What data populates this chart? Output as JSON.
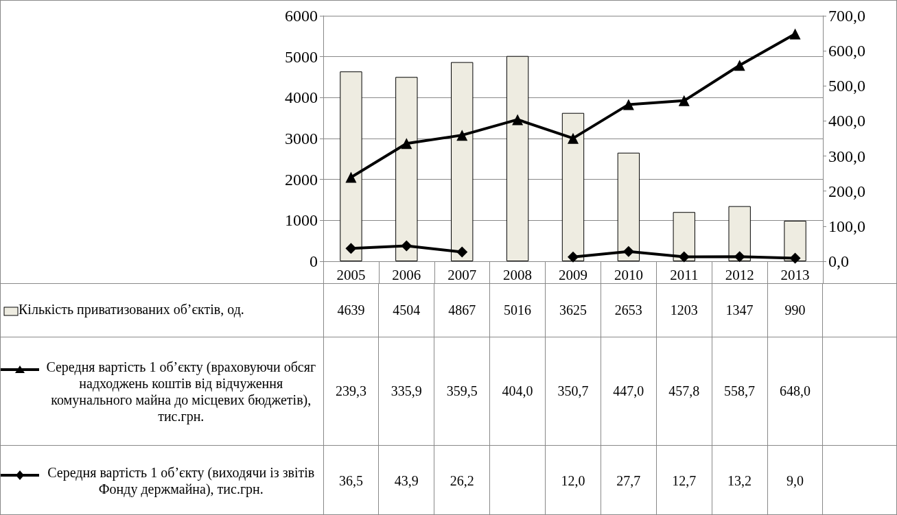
{
  "chart_data": {
    "type": "bar",
    "categories": [
      "2005",
      "2006",
      "2007",
      "2008",
      "2009",
      "2010",
      "2011",
      "2012",
      "2013"
    ],
    "series": [
      {
        "name": "Кількість приватизованих об’єктів, од.",
        "color": "#eeece1",
        "values": [
          4639,
          4504,
          4867,
          5016,
          3625,
          2653,
          1203,
          1347,
          990
        ],
        "value_labels": [
          "4639",
          "4504",
          "4867",
          "5016",
          "3625",
          "2653",
          "1203",
          "1347",
          "990"
        ]
      },
      {
        "name": "Середня вартість 1 об’єкту (враховуючи обсяг надходжень коштів від відчуження комунального майна до місцевих бюджетів), тис.грн.",
        "type": "line",
        "axis": "y2",
        "marker": "triangle",
        "color": "#000000",
        "values": [
          239.3,
          335.9,
          359.5,
          404.0,
          350.7,
          447.0,
          457.8,
          558.7,
          648.0
        ],
        "value_labels": [
          "239,3",
          "335,9",
          "359,5",
          "404,0",
          "350,7",
          "447,0",
          "457,8",
          "558,7",
          "648,0"
        ]
      },
      {
        "name": "Середня вартість 1 об’єкту (виходячи із звітів Фонду держмайна), тис.грн.",
        "type": "line",
        "axis": "y2",
        "marker": "diamond",
        "color": "#000000",
        "values": [
          36.5,
          43.9,
          26.2,
          null,
          12.0,
          27.7,
          12.7,
          13.2,
          9.0
        ],
        "value_labels": [
          "36,5",
          "43,9",
          "26,2",
          null,
          "12,0",
          "27,7",
          "12,7",
          "13,2",
          "9,0"
        ]
      }
    ],
    "ylim": [
      0,
      6000
    ],
    "yticks": [
      0,
      1000,
      2000,
      3000,
      4000,
      5000,
      6000
    ],
    "y2lim": [
      0,
      700
    ],
    "y2ticks": [
      {
        "value": 0,
        "label": "0,0"
      },
      {
        "value": 100,
        "label": "100,0"
      },
      {
        "value": 200,
        "label": "200,0"
      },
      {
        "value": 300,
        "label": "300,0"
      },
      {
        "value": 400,
        "label": "400,0"
      },
      {
        "value": 500,
        "label": "500,0"
      },
      {
        "value": 600,
        "label": "600,0"
      },
      {
        "value": 700,
        "label": "700,0"
      }
    ],
    "grid": "y",
    "legend": "bottom left",
    "line_style": "solid"
  }
}
